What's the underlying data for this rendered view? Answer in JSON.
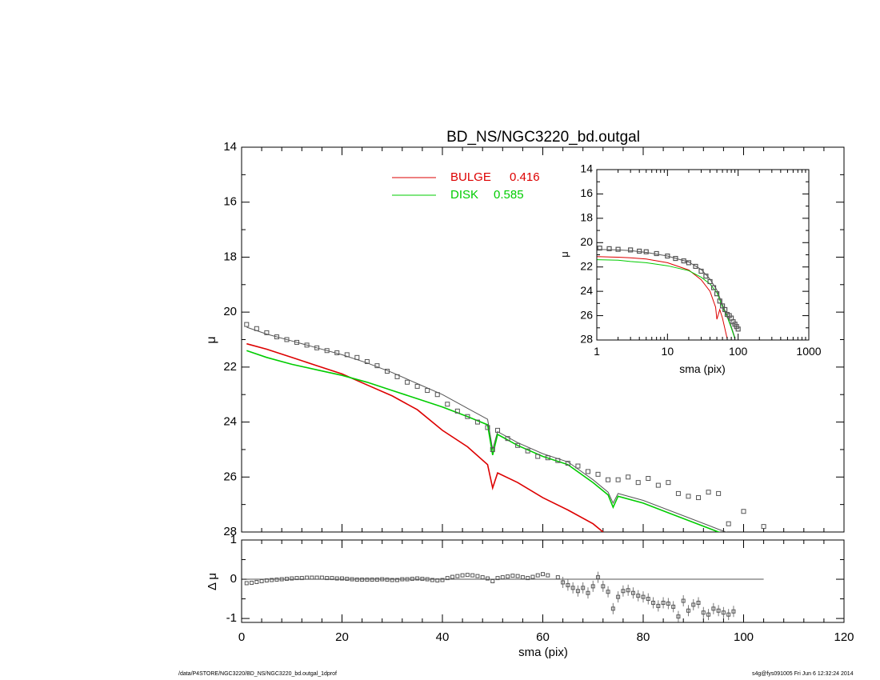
{
  "footer": {
    "left": "/data/P4STORE/NGC3220/BD_NS/NGC3220_bd.outgal_1dprof",
    "right": "s4g@fys091005  Fri Jun  6 12:32:24 2014"
  },
  "chart_data": [
    {
      "panel": "main",
      "type": "line",
      "title": "BD_NS/NGC3220_bd.outgal",
      "xlabel": "",
      "ylabel": "μ",
      "xlim": [
        0,
        120
      ],
      "ylim": [
        28,
        14
      ],
      "y_inverted": true,
      "yticks": [
        "14",
        "16",
        "18",
        "20",
        "22",
        "24",
        "26",
        "28"
      ],
      "legend": [
        {
          "label": "BULGE",
          "value": "0.416",
          "color": "#dd0000"
        },
        {
          "label": "DISK",
          "value": "0.585",
          "color": "#00cc00"
        }
      ],
      "series": [
        {
          "name": "data",
          "style": "square-markers",
          "color": "#555555",
          "x": [
            1,
            3,
            5,
            7,
            9,
            11,
            13,
            15,
            17,
            19,
            21,
            23,
            25,
            27,
            29,
            31,
            33,
            35,
            37,
            39,
            41,
            43,
            45,
            47,
            49,
            50,
            51,
            53,
            55,
            57,
            59,
            61,
            63,
            65,
            67,
            69,
            71,
            73,
            75,
            77,
            79,
            81,
            83,
            85,
            87,
            89,
            91,
            93,
            95,
            97,
            100,
            104
          ],
          "y": [
            20.45,
            20.6,
            20.75,
            20.9,
            21.0,
            21.1,
            21.2,
            21.3,
            21.4,
            21.48,
            21.55,
            21.65,
            21.8,
            21.95,
            22.15,
            22.35,
            22.55,
            22.7,
            22.85,
            23.0,
            23.35,
            23.6,
            23.8,
            24.0,
            24.2,
            25.0,
            24.3,
            24.6,
            24.85,
            25.05,
            25.25,
            25.3,
            25.4,
            25.5,
            25.6,
            25.8,
            25.9,
            26.1,
            26.1,
            26.0,
            26.2,
            26.05,
            26.3,
            26.2,
            26.6,
            26.7,
            26.75,
            26.55,
            26.6,
            27.7,
            27.25,
            27.8
          ]
        },
        {
          "name": "model",
          "style": "line",
          "color": "#555555",
          "x": [
            1,
            5,
            10,
            15,
            20,
            25,
            30,
            35,
            40,
            45,
            49,
            50,
            51,
            55,
            60,
            65,
            70,
            73,
            74,
            75,
            80,
            85,
            90,
            95,
            98
          ],
          "y": [
            20.55,
            20.8,
            21.05,
            21.3,
            21.55,
            21.85,
            22.2,
            22.6,
            23.0,
            23.5,
            23.9,
            25.0,
            24.35,
            24.75,
            25.15,
            25.45,
            26.1,
            26.55,
            26.95,
            26.6,
            26.85,
            27.2,
            27.55,
            27.9,
            28.1
          ]
        },
        {
          "name": "BULGE",
          "style": "line",
          "color": "#dd0000",
          "x": [
            1,
            5,
            10,
            15,
            20,
            25,
            30,
            35,
            40,
            45,
            49,
            50,
            51,
            55,
            60,
            65,
            70,
            72
          ],
          "y": [
            21.15,
            21.35,
            21.65,
            21.95,
            22.25,
            22.65,
            23.05,
            23.55,
            24.3,
            24.9,
            25.55,
            26.4,
            25.85,
            26.2,
            26.75,
            27.2,
            27.7,
            28.0
          ]
        },
        {
          "name": "DISK",
          "style": "line",
          "color": "#00cc00",
          "x": [
            1,
            5,
            10,
            15,
            20,
            25,
            30,
            35,
            40,
            45,
            49,
            50,
            51,
            55,
            60,
            65,
            70,
            73,
            74,
            75,
            80,
            85,
            90,
            95,
            98
          ],
          "y": [
            21.4,
            21.65,
            21.9,
            22.1,
            22.3,
            22.55,
            22.85,
            23.15,
            23.45,
            23.8,
            24.1,
            25.2,
            24.45,
            24.85,
            25.25,
            25.55,
            26.2,
            26.65,
            27.1,
            26.7,
            26.95,
            27.3,
            27.65,
            28.0,
            28.2
          ]
        }
      ]
    },
    {
      "panel": "inset",
      "type": "line",
      "xlabel": "sma (pix)",
      "ylabel": "μ",
      "xscale": "log",
      "xlim": [
        1,
        1000
      ],
      "ylim": [
        28,
        14
      ],
      "y_inverted": true,
      "xticks": [
        "1",
        "10",
        "100",
        "1000"
      ],
      "yticks": [
        "14",
        "16",
        "18",
        "20",
        "22",
        "24",
        "26",
        "28"
      ],
      "series": [
        {
          "name": "data",
          "style": "square-markers",
          "color": "#555555",
          "x": [
            1.1,
            1.5,
            2,
            3,
            4,
            5,
            7,
            10,
            13,
            17,
            20,
            25,
            30,
            35,
            40,
            45,
            50,
            55,
            60,
            65,
            70,
            75,
            80,
            85,
            90,
            95,
            100
          ],
          "y": [
            20.45,
            20.5,
            20.55,
            20.6,
            20.7,
            20.75,
            20.9,
            21.1,
            21.3,
            21.5,
            21.65,
            21.95,
            22.35,
            22.75,
            23.2,
            23.7,
            24.2,
            24.8,
            25.2,
            25.5,
            25.9,
            26.0,
            26.2,
            26.5,
            26.7,
            26.9,
            27.1
          ]
        },
        {
          "name": "model",
          "style": "line",
          "color": "#555555",
          "x": [
            1,
            2,
            3,
            5,
            10,
            20,
            30,
            40,
            50,
            60,
            70,
            80,
            90
          ],
          "y": [
            20.55,
            20.6,
            20.65,
            20.8,
            21.1,
            21.6,
            22.2,
            23.0,
            23.9,
            25.1,
            26.0,
            26.9,
            27.8
          ]
        },
        {
          "name": "BULGE",
          "style": "line",
          "color": "#dd0000",
          "x": [
            1,
            2,
            3,
            5,
            10,
            20,
            30,
            40,
            48,
            50,
            55,
            60,
            70
          ],
          "y": [
            21.15,
            21.2,
            21.25,
            21.35,
            21.65,
            22.25,
            23.05,
            24.0,
            25.3,
            26.3,
            25.5,
            26.2,
            27.9
          ]
        },
        {
          "name": "DISK",
          "style": "line",
          "color": "#00cc00",
          "x": [
            1,
            2,
            3,
            5,
            10,
            20,
            30,
            40,
            50,
            60,
            70,
            80,
            90
          ],
          "y": [
            21.4,
            21.45,
            21.55,
            21.65,
            21.9,
            22.3,
            22.85,
            23.4,
            24.1,
            25.3,
            26.1,
            27.0,
            27.9
          ]
        }
      ]
    },
    {
      "panel": "residual",
      "type": "scatter",
      "xlabel": "sma (pix)",
      "ylabel": "Δ μ",
      "xlim": [
        0,
        120
      ],
      "ylim": [
        -1.1,
        1.0
      ],
      "xticks": [
        "0",
        "20",
        "40",
        "60",
        "80",
        "100",
        "120"
      ],
      "yticks": [
        "-1",
        "0",
        "1"
      ],
      "zero_line": {
        "x": [
          1,
          104
        ],
        "y": 0
      },
      "series": [
        {
          "name": "residual",
          "style": "square-markers",
          "color": "#555555",
          "x": [
            1,
            2,
            3,
            4,
            5,
            6,
            7,
            8,
            9,
            10,
            11,
            12,
            13,
            14,
            15,
            16,
            17,
            18,
            19,
            20,
            21,
            22,
            23,
            24,
            25,
            26,
            27,
            28,
            29,
            30,
            31,
            32,
            33,
            34,
            35,
            36,
            37,
            38,
            39,
            40,
            41,
            42,
            43,
            44,
            45,
            46,
            47,
            48,
            49,
            50,
            51,
            52,
            53,
            54,
            55,
            56,
            57,
            58,
            59,
            60,
            61,
            63,
            64,
            65,
            66,
            67,
            68,
            69,
            70,
            71,
            72,
            73,
            74,
            75,
            76,
            77,
            78,
            79,
            80,
            81,
            82,
            83,
            84,
            85,
            86,
            87,
            88,
            89,
            90,
            91,
            92,
            93,
            94,
            95,
            96,
            97,
            98
          ],
          "y": [
            -0.1,
            -0.09,
            -0.07,
            -0.05,
            -0.03,
            -0.02,
            -0.01,
            0.0,
            0.01,
            0.02,
            0.03,
            0.03,
            0.04,
            0.04,
            0.04,
            0.04,
            0.03,
            0.03,
            0.02,
            0.02,
            0.01,
            0.0,
            -0.01,
            -0.01,
            -0.01,
            -0.01,
            -0.01,
            0.0,
            -0.01,
            -0.02,
            -0.02,
            0.0,
            0.0,
            0.01,
            0.02,
            0.01,
            0.0,
            -0.02,
            -0.03,
            -0.02,
            0.03,
            0.06,
            0.08,
            0.1,
            0.11,
            0.1,
            0.08,
            0.05,
            0.02,
            -0.05,
            0.03,
            0.05,
            0.07,
            0.09,
            0.08,
            0.05,
            0.03,
            0.06,
            0.1,
            0.13,
            0.1,
            0.05,
            -0.08,
            -0.15,
            -0.22,
            -0.3,
            -0.22,
            -0.35,
            -0.18,
            0.05,
            -0.18,
            -0.32,
            -0.75,
            -0.45,
            -0.3,
            -0.28,
            -0.35,
            -0.42,
            -0.45,
            -0.5,
            -0.6,
            -0.68,
            -0.6,
            -0.62,
            -0.7,
            -0.95,
            -0.55,
            -0.8,
            -0.65,
            -0.6,
            -0.85,
            -0.9,
            -0.75,
            -0.8,
            -0.85,
            -0.9,
            -0.82
          ]
        }
      ]
    }
  ]
}
